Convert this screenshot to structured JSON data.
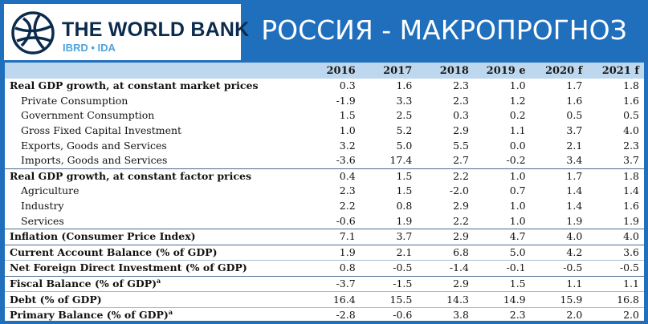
{
  "header": {
    "logo_title": "THE WORLD BANK",
    "logo_subtitle": "IBRD • IDA",
    "headline": "РОССИЯ - МАКРОПРОГНОЗ"
  },
  "colors": {
    "background": "#1f6fbd",
    "header_row": "#bdd7ee",
    "logo_navy": "#0b2b4d",
    "logo_blue": "#4fa3dc"
  },
  "table": {
    "columns": [
      "2016",
      "2017",
      "2018",
      "2019 e",
      "2020 f",
      "2021 f"
    ],
    "rows": [
      {
        "label": "Real GDP growth, at constant market prices",
        "values": [
          "0.3",
          "1.6",
          "2.3",
          "1.0",
          "1.7",
          "1.8"
        ]
      },
      {
        "label": "Private Consumption",
        "values": [
          "-1.9",
          "3.3",
          "2.3",
          "1.2",
          "1.6",
          "1.6"
        ]
      },
      {
        "label": "Government Consumption",
        "values": [
          "1.5",
          "2.5",
          "0.3",
          "0.2",
          "0.5",
          "0.5"
        ]
      },
      {
        "label": "Gross Fixed Capital Investment",
        "values": [
          "1.0",
          "5.2",
          "2.9",
          "1.1",
          "3.7",
          "4.0"
        ]
      },
      {
        "label": "Exports, Goods and Services",
        "values": [
          "3.2",
          "5.0",
          "5.5",
          "0.0",
          "2.1",
          "2.3"
        ]
      },
      {
        "label": "Imports, Goods and Services",
        "values": [
          "-3.6",
          "17.4",
          "2.7",
          "-0.2",
          "3.4",
          "3.7"
        ]
      },
      {
        "label": "Real GDP growth, at constant factor prices",
        "values": [
          "0.4",
          "1.5",
          "2.2",
          "1.0",
          "1.7",
          "1.8"
        ]
      },
      {
        "label": "Agriculture",
        "values": [
          "2.3",
          "1.5",
          "-2.0",
          "0.7",
          "1.4",
          "1.4"
        ]
      },
      {
        "label": "Industry",
        "values": [
          "2.2",
          "0.8",
          "2.9",
          "1.0",
          "1.4",
          "1.6"
        ]
      },
      {
        "label": "Services",
        "values": [
          "-0.6",
          "1.9",
          "2.2",
          "1.0",
          "1.9",
          "1.9"
        ]
      },
      {
        "label": "Inflation (Consumer Price Index)",
        "values": [
          "7.1",
          "3.7",
          "2.9",
          "4.7",
          "4.0",
          "4.0"
        ]
      },
      {
        "label": "Current Account Balance (% of GDP)",
        "values": [
          "1.9",
          "2.1",
          "6.8",
          "5.0",
          "4.2",
          "3.6"
        ]
      },
      {
        "label": "Net Foreign Direct Investment (% of GDP)",
        "values": [
          "0.8",
          "-0.5",
          "-1.4",
          "-0.1",
          "-0.5",
          "-0.5"
        ]
      },
      {
        "label": "Fiscal Balance (% of GDP)",
        "sup": "a",
        "values": [
          "-3.7",
          "-1.5",
          "2.9",
          "1.5",
          "1.1",
          "1.1"
        ]
      },
      {
        "label": "Debt (% of GDP)",
        "values": [
          "16.4",
          "15.5",
          "14.3",
          "14.9",
          "15.9",
          "16.8"
        ]
      },
      {
        "label": "Primary Balance (% of GDP)",
        "sup": "a",
        "values": [
          "-2.8",
          "-0.6",
          "3.8",
          "2.3",
          "2.0",
          "2.0"
        ]
      }
    ]
  }
}
